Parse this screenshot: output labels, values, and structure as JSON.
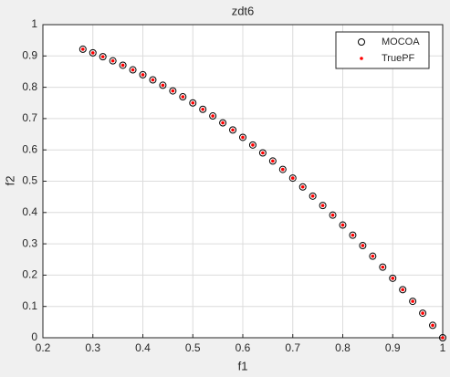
{
  "chart_data": {
    "type": "scatter",
    "title": "zdt6",
    "x_label": "f1",
    "y_label": "f2",
    "x": [
      0.28,
      0.3,
      0.32,
      0.34,
      0.36,
      0.38,
      0.4,
      0.42,
      0.44,
      0.46,
      0.48,
      0.5,
      0.52,
      0.54,
      0.56,
      0.58,
      0.6,
      0.62,
      0.64,
      0.66,
      0.68,
      0.7,
      0.72,
      0.74,
      0.76,
      0.78,
      0.8,
      0.82,
      0.84,
      0.86,
      0.88,
      0.9,
      0.92,
      0.94,
      0.96,
      0.98,
      1.0
    ],
    "series": [
      {
        "name": "MOCOA",
        "color": "#000000",
        "marker": "circle",
        "values": [
          0.9216,
          0.91,
          0.8976,
          0.8844,
          0.8704,
          0.8556,
          0.84,
          0.8236,
          0.8064,
          0.7884,
          0.7696,
          0.75,
          0.7296,
          0.7084,
          0.6864,
          0.6636,
          0.64,
          0.6156,
          0.5904,
          0.5644,
          0.5376,
          0.51,
          0.4816,
          0.4524,
          0.4224,
          0.3916,
          0.36,
          0.3276,
          0.2944,
          0.2604,
          0.2256,
          0.19,
          0.1536,
          0.1164,
          0.0784,
          0.0396,
          0
        ]
      },
      {
        "name": "TruePF",
        "color": "#ff0000",
        "marker": "dot",
        "values": [
          0.9216,
          0.91,
          0.8976,
          0.8844,
          0.8704,
          0.8556,
          0.84,
          0.8236,
          0.8064,
          0.7884,
          0.7696,
          0.75,
          0.7296,
          0.7084,
          0.6864,
          0.6636,
          0.64,
          0.6156,
          0.5904,
          0.5644,
          0.5376,
          0.51,
          0.4816,
          0.4524,
          0.4224,
          0.3916,
          0.36,
          0.3276,
          0.2944,
          0.2604,
          0.2256,
          0.19,
          0.1536,
          0.1164,
          0.0784,
          0.0396,
          0
        ]
      }
    ],
    "xlim": [
      0.2,
      1
    ],
    "xticks": [
      0.2,
      0.3,
      0.4,
      0.5,
      0.6,
      0.7,
      0.8,
      0.9,
      1
    ],
    "ylim": [
      0,
      1
    ],
    "yticks": [
      0,
      0.1,
      0.2,
      0.3,
      0.4,
      0.5,
      0.6,
      0.7,
      0.8,
      0.9,
      1
    ],
    "grid": true,
    "legend": "top-right"
  }
}
